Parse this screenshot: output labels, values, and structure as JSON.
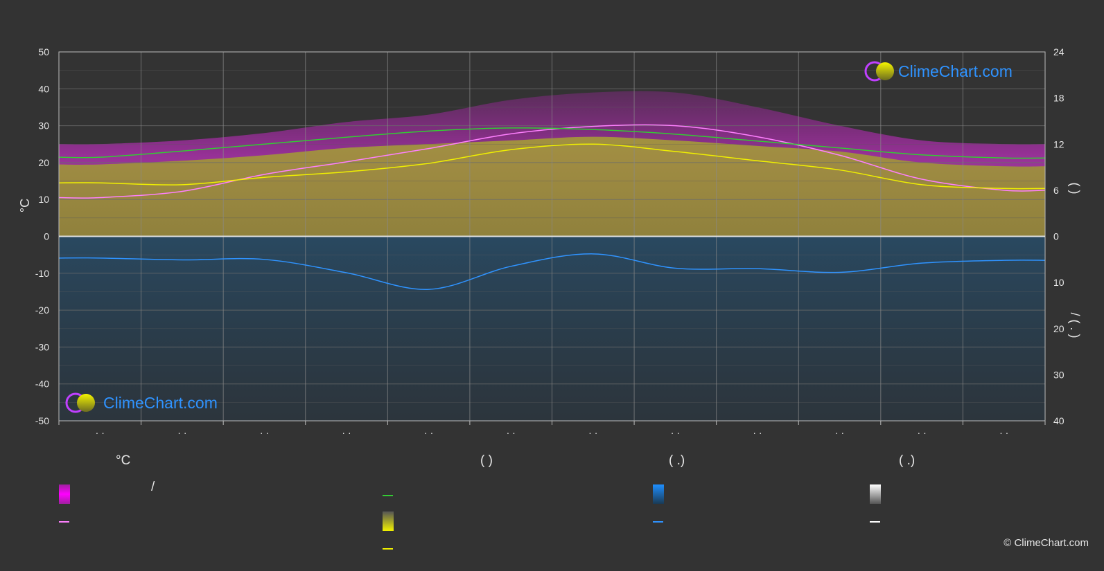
{
  "chart_data": {
    "type": "area",
    "title": "",
    "left_axis": {
      "label": "°C",
      "ticks": [
        50,
        40,
        30,
        20,
        10,
        0,
        -10,
        -20,
        -30,
        -40,
        -50
      ],
      "range": [
        -50,
        50
      ]
    },
    "right_axis_top": {
      "label": "(  )",
      "ticks": [
        24,
        18,
        12,
        6,
        0
      ],
      "range": [
        0,
        24
      ]
    },
    "right_axis_bottom": {
      "label": "/  (  .  )",
      "ticks": [
        0,
        10,
        20,
        30,
        40
      ],
      "range": [
        0,
        40
      ]
    },
    "x_tick_labels": [
      "· ·",
      "· ·",
      "· ·",
      "· ·",
      "· ·",
      "· ·",
      "· ·",
      "· ·",
      "· ·",
      "· ·",
      "· ·",
      "· ·"
    ],
    "months_x": [
      0.5,
      1.5,
      2.5,
      3.5,
      4.5,
      5.5,
      6.5,
      7.5,
      8.5,
      9.5,
      10.5,
      11.5
    ],
    "series": [
      {
        "name": "",
        "color": "#ff80ff",
        "axis": "temperature",
        "values": [
          10.5,
          12.2,
          16.8,
          20.2,
          23.8,
          27.8,
          29.8,
          30.0,
          27.0,
          22.0,
          15.5,
          12.5
        ]
      },
      {
        "name": "",
        "color": "#f0f000",
        "axis": "temperature",
        "values": [
          14.5,
          14.0,
          16.0,
          17.5,
          19.8,
          23.5,
          25.0,
          23.0,
          20.5,
          18.0,
          14.0,
          13.0
        ]
      },
      {
        "name": "",
        "color": "#33cc33",
        "axis": "daylight_hours",
        "values": [
          10.3,
          11.1,
          12.0,
          12.9,
          13.7,
          14.1,
          13.9,
          13.3,
          12.4,
          11.5,
          10.6,
          10.2
        ]
      },
      {
        "name": "",
        "color": "#2f93ff",
        "axis": "precipitation",
        "values": [
          4.7,
          5.1,
          5.0,
          7.9,
          11.5,
          6.5,
          3.8,
          6.9,
          7.0,
          7.8,
          5.8,
          5.2
        ]
      }
    ],
    "bands": {
      "temp_range_max_top": [
        25,
        26,
        28,
        31,
        33,
        37,
        39,
        39,
        35,
        30,
        26,
        25
      ],
      "temp_range_min_top": [
        20,
        21,
        23,
        25,
        27,
        29,
        30,
        30,
        29,
        26,
        22,
        20
      ],
      "sunshine_band_top": [
        19.5,
        20.5,
        22,
        24,
        25,
        26,
        27,
        26,
        24.5,
        23,
        20,
        19
      ],
      "precip_band_bottom": [
        -50,
        -50,
        -50,
        -50,
        -50,
        -50,
        -50,
        -50,
        -50,
        -50,
        -50,
        -50
      ]
    },
    "grid": true,
    "legend_position": "bottom"
  },
  "colors": {
    "background": "#333333",
    "grid": "#6b6b6b",
    "temp_band": "#d01fd0",
    "sunshine_band": "#9c9c2a",
    "precip_band": "#1a4a6e",
    "brand_blue": "#2f93ff"
  },
  "branding": {
    "logo_text": "ClimeChart.com",
    "copyright": "© ClimeChart.com"
  },
  "legend": {
    "temperature_header": "°C",
    "daylight_header": "(          )",
    "precip_header": "(    .)",
    "snow_header": "(    .)",
    "temp_range_sep": "/"
  }
}
